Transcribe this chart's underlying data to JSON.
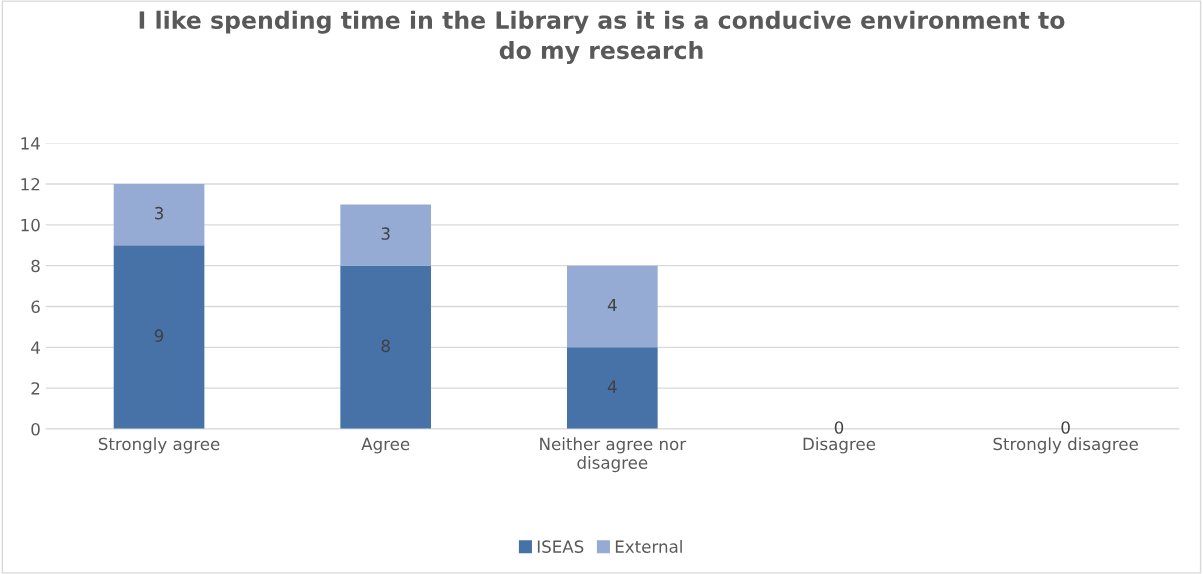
{
  "chart_data": {
    "type": "bar",
    "stacked": true,
    "title": "I like spending time in the Library as it is a conducive environment to do my research",
    "categories": [
      "Strongly agree",
      "Agree",
      "Neither agree nor disagree",
      "Disagree",
      "Strongly disagree"
    ],
    "series": [
      {
        "name": "ISEAS",
        "color": "#4672a8",
        "values": [
          9,
          8,
          4,
          0,
          0
        ],
        "value_labels": [
          "9",
          "8",
          "4",
          "0",
          "0"
        ]
      },
      {
        "name": "External",
        "color": "#95abd3",
        "values": [
          3,
          3,
          4,
          0,
          0
        ],
        "value_labels": [
          "3",
          "3",
          "4",
          null,
          null
        ]
      }
    ],
    "ylim": [
      0,
      14
    ],
    "yticks": [
      0,
      2,
      4,
      6,
      8,
      10,
      12,
      14
    ],
    "grid": "y",
    "legend": "bottom"
  }
}
